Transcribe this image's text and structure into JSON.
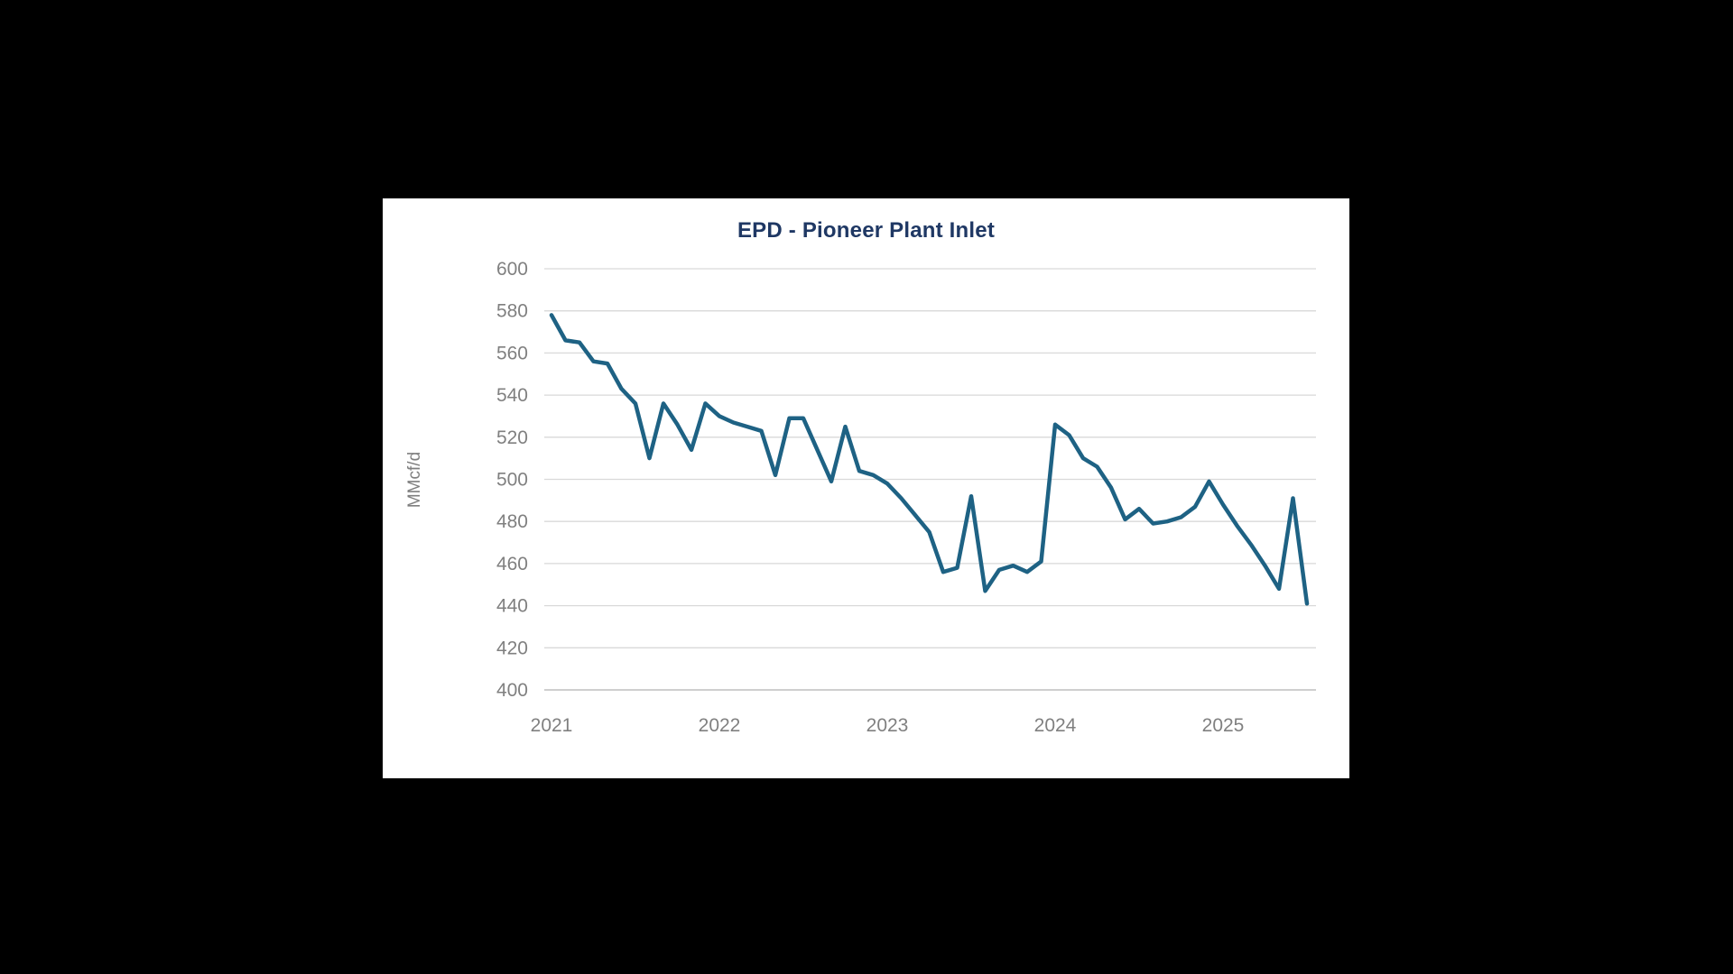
{
  "window": {
    "background_color": "#000000",
    "panel_color": "#FFFFFF"
  },
  "chart_data": {
    "type": "line",
    "title": "EPD - Pioneer Plant Inlet",
    "xlabel": "",
    "ylabel": "MMcf/d",
    "ylim": [
      400,
      600
    ],
    "y_ticks": [
      400,
      420,
      440,
      460,
      480,
      500,
      520,
      540,
      560,
      580,
      600
    ],
    "x_tick_labels": [
      "2021",
      "2022",
      "2023",
      "2024",
      "2025"
    ],
    "x_frequency": "monthly",
    "x_start_label": "2021-01",
    "points_per_year": 12,
    "grid": "horizontal",
    "legend": "none",
    "series": [
      {
        "values": [
          578,
          566,
          565,
          556,
          555,
          543,
          536,
          510,
          536,
          526,
          514,
          536,
          530,
          527,
          525,
          523,
          502,
          529,
          529,
          514,
          499,
          525,
          504,
          502,
          498,
          491,
          483,
          475,
          456,
          458,
          492,
          447,
          457,
          459,
          456,
          461,
          526,
          521,
          510,
          506,
          496,
          481,
          486,
          479,
          480,
          482,
          487,
          499,
          488,
          478,
          469,
          459,
          448,
          491,
          441
        ]
      }
    ],
    "colors": {
      "line": "#1E6284",
      "title": "#1F3864",
      "tick_labels": "#808080",
      "axis_title": "#7F7F7F",
      "gridline": "#D9D9D9",
      "axis_line": "#BFBFBF"
    }
  }
}
